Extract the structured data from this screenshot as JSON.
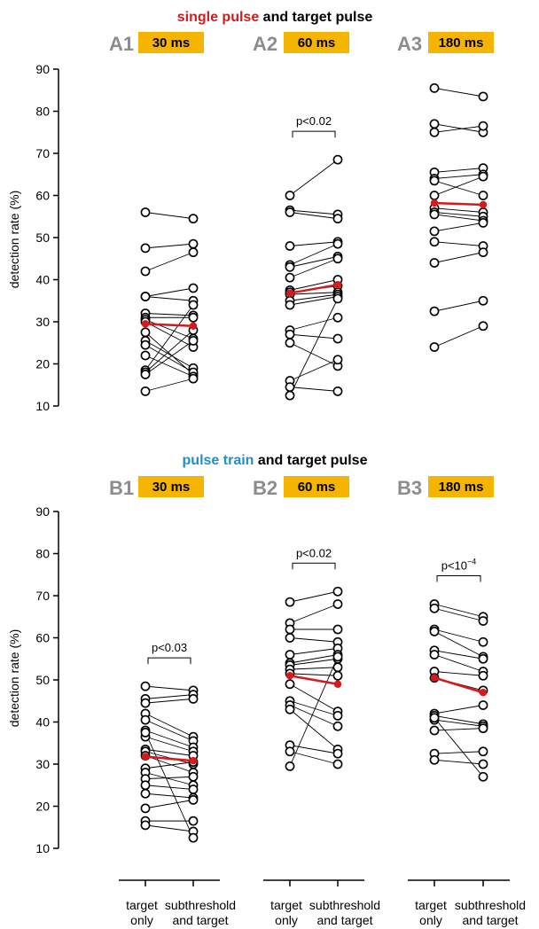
{
  "colors": {
    "highlight_red": "#d7191c",
    "highlight_blue": "#1f8fc8",
    "badge": "#f5b400",
    "label_gray": "#8c8c8c",
    "mean_line": "#d7191c"
  },
  "row_a": {
    "title_highlight": "single pulse",
    "title_rest": " and target pulse"
  },
  "row_b": {
    "title_highlight": "pulse train",
    "title_rest": " and target pulse"
  },
  "ylabel": "detection rate (%)",
  "x_labels": {
    "left_line1": "target",
    "left_line2": "only",
    "right_line1": "subthreshold",
    "right_line2": "and target"
  },
  "chart_data": [
    {
      "type": "line",
      "panel": "A1",
      "duration": "30 ms",
      "pvalue": "",
      "pvalue_exp": "",
      "ylabel": "detection rate (%)",
      "ylim": [
        10,
        90
      ],
      "yticks": [
        10,
        20,
        30,
        40,
        50,
        60,
        70,
        80,
        90
      ],
      "categories": [
        "target only",
        "subthreshold and target"
      ],
      "pairs": [
        [
          56,
          54.5
        ],
        [
          47.5,
          48.5
        ],
        [
          42,
          46.5
        ],
        [
          36,
          38
        ],
        [
          36,
          35
        ],
        [
          32,
          31.5
        ],
        [
          31,
          31
        ],
        [
          30.5,
          26
        ],
        [
          30,
          24
        ],
        [
          27.5,
          17.5
        ],
        [
          25.5,
          19
        ],
        [
          24.5,
          18
        ],
        [
          22,
          17
        ],
        [
          18.5,
          34
        ],
        [
          18,
          28
        ],
        [
          17.5,
          25.5
        ],
        [
          13.5,
          16.5
        ]
      ],
      "mean": [
        29.5,
        29
      ]
    },
    {
      "type": "line",
      "panel": "A2",
      "duration": "60 ms",
      "pvalue": "p<0.02",
      "pvalue_exp": "",
      "ylabel": "detection rate (%)",
      "ylim": [
        10,
        90
      ],
      "yticks": [
        10,
        20,
        30,
        40,
        50,
        60,
        70,
        80,
        90
      ],
      "categories": [
        "target only",
        "subthreshold and target"
      ],
      "pairs": [
        [
          60,
          68.5
        ],
        [
          56.5,
          55.5
        ],
        [
          56,
          54.5
        ],
        [
          48,
          49
        ],
        [
          43.5,
          48.5
        ],
        [
          43,
          45.5
        ],
        [
          40.5,
          45
        ],
        [
          37.5,
          40
        ],
        [
          37,
          38.5
        ],
        [
          36.5,
          37
        ],
        [
          35,
          36.5
        ],
        [
          34,
          36
        ],
        [
          28,
          31
        ],
        [
          27,
          26
        ],
        [
          25,
          19.5
        ],
        [
          16,
          21
        ],
        [
          14.5,
          13.5
        ],
        [
          12.5,
          35.5
        ]
      ],
      "mean": [
        36.8,
        38.8
      ]
    },
    {
      "type": "line",
      "panel": "A3",
      "duration": "180 ms",
      "pvalue": "",
      "pvalue_exp": "",
      "ylabel": "detection rate (%)",
      "ylim": [
        10,
        90
      ],
      "yticks": [
        10,
        20,
        30,
        40,
        50,
        60,
        70,
        80,
        90
      ],
      "categories": [
        "target only",
        "subthreshold and target"
      ],
      "pairs": [
        [
          85.5,
          83.5
        ],
        [
          77,
          75
        ],
        [
          75,
          76.5
        ],
        [
          65.5,
          66.5
        ],
        [
          64,
          65
        ],
        [
          63.5,
          60
        ],
        [
          60,
          64.5
        ],
        [
          57,
          56
        ],
        [
          56,
          55
        ],
        [
          55.5,
          54
        ],
        [
          51.5,
          53.5
        ],
        [
          49,
          48
        ],
        [
          44,
          46.5
        ],
        [
          32.5,
          35
        ],
        [
          24,
          29
        ]
      ],
      "mean": [
        58.2,
        57.8
      ]
    },
    {
      "type": "line",
      "panel": "B1",
      "duration": "30 ms",
      "pvalue": "p<0.03",
      "pvalue_exp": "",
      "ylabel": "detection rate (%)",
      "ylim": [
        10,
        90
      ],
      "yticks": [
        10,
        20,
        30,
        40,
        50,
        60,
        70,
        80,
        90
      ],
      "categories": [
        "target only",
        "subthreshold and target"
      ],
      "pairs": [
        [
          48.5,
          47.5
        ],
        [
          45.5,
          46.5
        ],
        [
          44.5,
          45.5
        ],
        [
          42,
          36.5
        ],
        [
          40.5,
          35.5
        ],
        [
          38,
          34
        ],
        [
          36.5,
          33
        ],
        [
          33.5,
          32
        ],
        [
          33,
          30
        ],
        [
          32,
          28
        ],
        [
          29,
          30.5
        ],
        [
          28,
          25
        ],
        [
          26.5,
          27
        ],
        [
          25,
          24
        ],
        [
          23,
          22
        ],
        [
          19.5,
          21.5
        ],
        [
          16.5,
          16.5
        ],
        [
          15.5,
          14
        ],
        [
          37.5,
          12.5
        ]
      ],
      "mean": [
        31.8,
        30.8
      ]
    },
    {
      "type": "line",
      "panel": "B2",
      "duration": "60 ms",
      "pvalue": "p<0.02",
      "pvalue_exp": "",
      "ylabel": "detection rate (%)",
      "ylim": [
        10,
        90
      ],
      "yticks": [
        10,
        20,
        30,
        40,
        50,
        60,
        70,
        80,
        90
      ],
      "categories": [
        "target only",
        "subthreshold and target"
      ],
      "pairs": [
        [
          68.5,
          71
        ],
        [
          63.5,
          68
        ],
        [
          62,
          62
        ],
        [
          60,
          59
        ],
        [
          56,
          57.5
        ],
        [
          54,
          56
        ],
        [
          53.5,
          55
        ],
        [
          52.5,
          53
        ],
        [
          51.5,
          51
        ],
        [
          49,
          42.5
        ],
        [
          45,
          41.5
        ],
        [
          44,
          39
        ],
        [
          43,
          33.5
        ],
        [
          34.5,
          32.5
        ],
        [
          33,
          30
        ],
        [
          29.5,
          55.5
        ]
      ],
      "mean": [
        51,
        49
      ]
    },
    {
      "type": "line",
      "panel": "B3",
      "duration": "180 ms",
      "pvalue": "p<10",
      "pvalue_exp": "−4",
      "ylabel": "detection rate (%)",
      "ylim": [
        10,
        90
      ],
      "yticks": [
        10,
        20,
        30,
        40,
        50,
        60,
        70,
        80,
        90
      ],
      "categories": [
        "target only",
        "subthreshold and target"
      ],
      "pairs": [
        [
          68,
          65
        ],
        [
          67,
          64
        ],
        [
          62,
          59
        ],
        [
          61.5,
          55.5
        ],
        [
          57,
          55
        ],
        [
          56,
          52
        ],
        [
          52,
          51
        ],
        [
          50.5,
          47.5
        ],
        [
          42,
          44
        ],
        [
          41.5,
          39.5
        ],
        [
          40.5,
          39
        ],
        [
          38,
          38.5
        ],
        [
          32.5,
          33
        ],
        [
          31,
          30
        ],
        [
          41,
          27
        ]
      ],
      "mean": [
        50.5,
        47
      ]
    }
  ]
}
